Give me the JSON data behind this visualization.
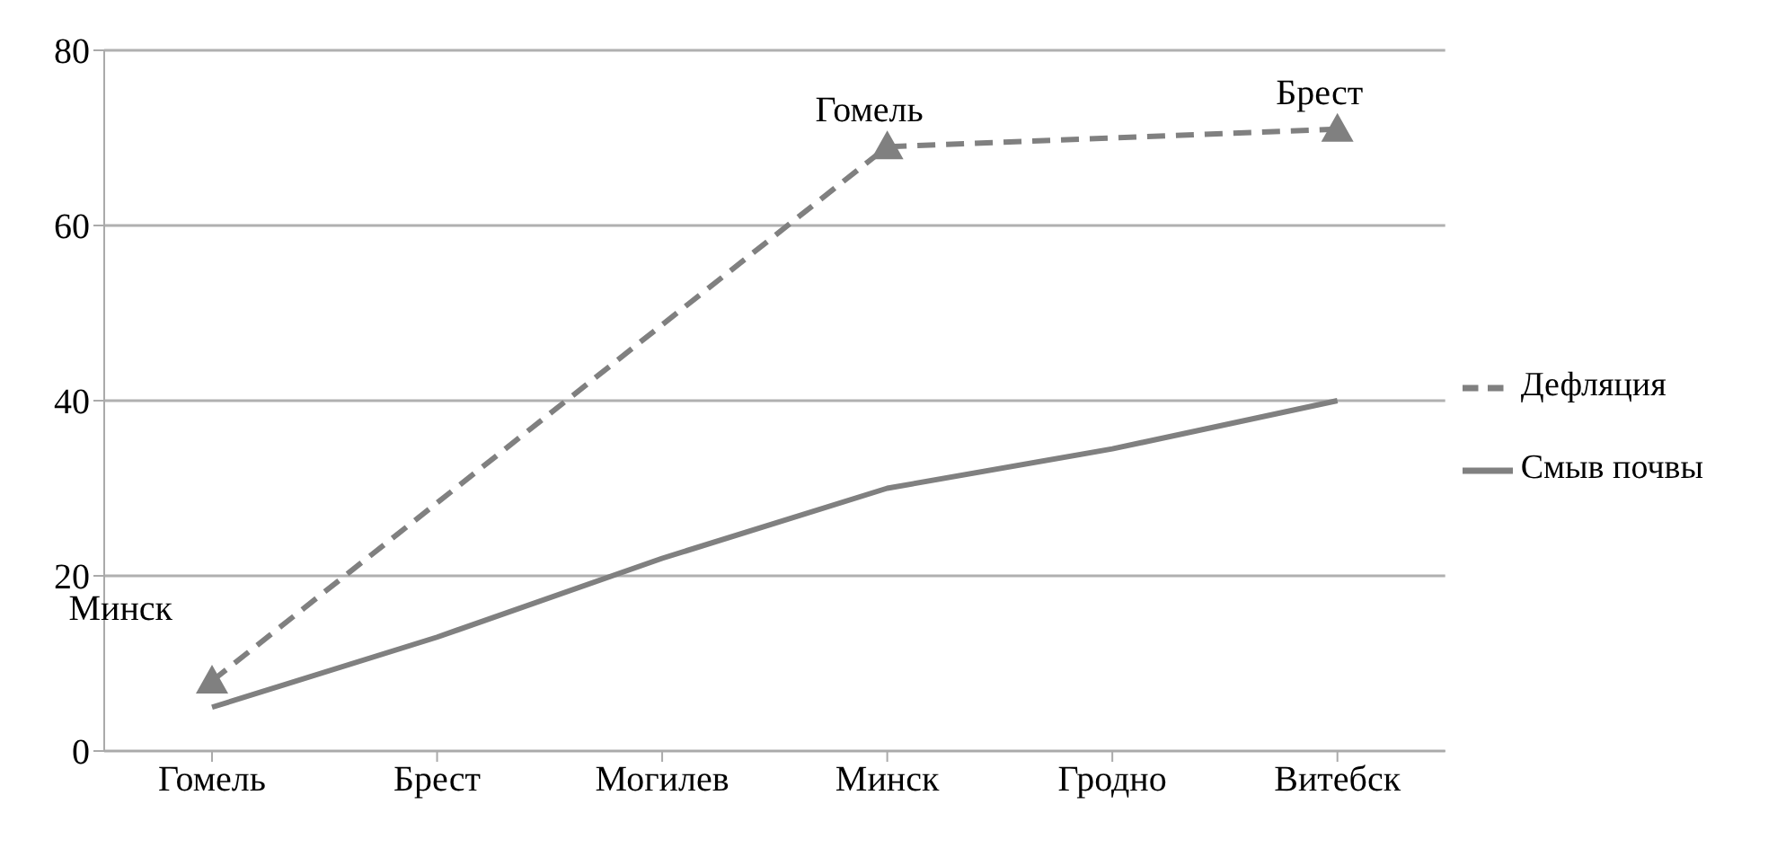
{
  "chart_data": {
    "type": "line",
    "categories": [
      "Гомель",
      "Брест",
      "Могилев",
      "Минск",
      "Гродно",
      "Витебск"
    ],
    "series": [
      {
        "name": "Смыв почвы",
        "color": "#808080",
        "values": [
          5,
          13,
          22,
          30,
          34.5,
          40
        ],
        "line_style": "solid",
        "marker": "none"
      },
      {
        "name": "Дефляция",
        "color": "#808080",
        "values": [
          8,
          null,
          null,
          69,
          null,
          71
        ],
        "line_style": "dashed",
        "marker": "triangle"
      }
    ],
    "ylim": [
      0,
      80
    ],
    "yticks": [
      0,
      20,
      40,
      60,
      80
    ],
    "grid": "y",
    "legend": "right",
    "annotations": [
      {
        "text": "Минск",
        "x": "Гомель",
        "y": 8
      },
      {
        "text": "Гомель",
        "x": "Минск",
        "y": 69
      },
      {
        "text": "Брест",
        "x": "Витебск",
        "y": 71
      }
    ]
  }
}
